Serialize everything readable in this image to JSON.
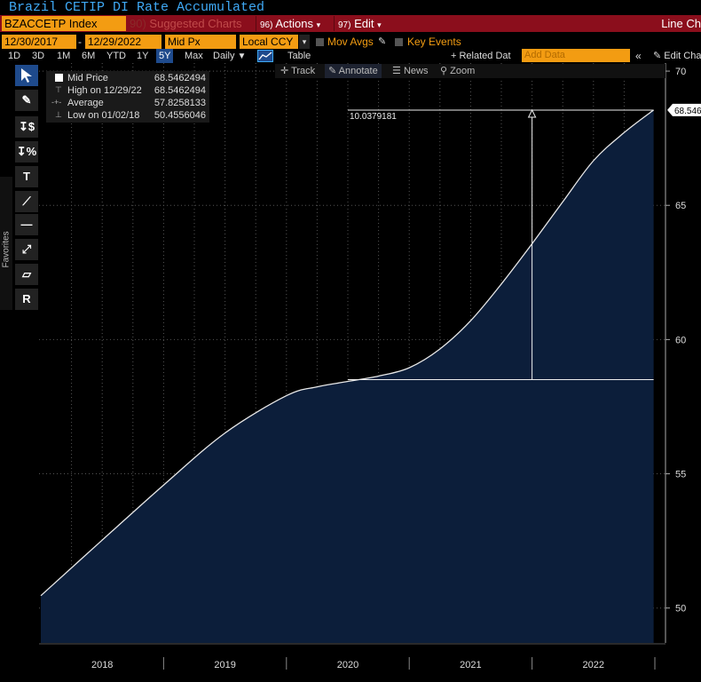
{
  "window": {
    "title": "Brazil CETIP DI Rate Accumulated"
  },
  "header": {
    "ticker": "BZACCETP Index",
    "suggested_num": "90)",
    "suggested_label": "Suggested Charts",
    "actions_num": "96)",
    "actions_label": "Actions",
    "edit_num": "97)",
    "edit_label": "Edit",
    "chart_type": "Line Ch"
  },
  "controls": {
    "start_date": "12/30/2017",
    "end_date": "12/29/2022",
    "price_field": "Mid Px",
    "currency": "Local CCY",
    "mov_avgs": "Mov Avgs",
    "key_events": "Key Events"
  },
  "periods": [
    "1D",
    "3D",
    "1M",
    "6M",
    "YTD",
    "1Y",
    "5Y",
    "Max"
  ],
  "selected_period": "5Y",
  "frequency": "Daily",
  "table_label": "Table",
  "related_data": "+ Related Dat",
  "add_data_placeholder": "Add Data",
  "edit_chart": "Edit Chart",
  "toolbar": {
    "track": "Track",
    "annotate": "Annotate",
    "news": "News",
    "zoom": "Zoom"
  },
  "sidebar": {
    "favorites": "Favorites",
    "tools": [
      "arrow",
      "pencil",
      "$",
      "%",
      "T",
      "trend",
      "hline",
      "channel",
      "fib",
      "R"
    ]
  },
  "legend": {
    "series": "Mid Price",
    "series_value": "68.5462494",
    "high_label": "High on 12/29/22",
    "high_value": "68.5462494",
    "avg_label": "Average",
    "avg_value": "57.8258133",
    "low_label": "Low on 01/02/18",
    "low_value": "50.4556046"
  },
  "annotation": {
    "delta_label": "10.0379181",
    "low_level": 58.5083,
    "high_level": 68.5462
  },
  "last_value_label": "68.546",
  "colors": {
    "fill": "#0c1e3a",
    "line": "#e8e8e8",
    "grid": "#555555",
    "accent": "#f39c12",
    "bar": "#8b0e1c"
  },
  "chart_data": {
    "type": "area",
    "title": "Brazil CETIP DI Rate Accumulated",
    "series": [
      {
        "name": "Mid Price",
        "x": [
          2018.0,
          2018.5,
          2019.0,
          2019.5,
          2020.0,
          2020.25,
          2020.5,
          2020.75,
          2021.0,
          2021.25,
          2021.5,
          2021.75,
          2022.0,
          2022.25,
          2022.5,
          2022.75,
          2022.99
        ],
        "values": [
          50.46,
          52.53,
          54.58,
          56.52,
          57.91,
          58.24,
          58.44,
          58.64,
          58.95,
          59.65,
          60.7,
          62.07,
          63.57,
          65.13,
          66.66,
          67.71,
          68.55
        ]
      }
    ],
    "x_ticks": [
      "2018",
      "2019",
      "2020",
      "2021",
      "2022"
    ],
    "y_ticks": [
      50,
      55,
      60,
      65,
      70
    ],
    "ylim": [
      48.7,
      70.3
    ],
    "xlim": [
      2018.0,
      2023.0
    ],
    "grid": true
  }
}
